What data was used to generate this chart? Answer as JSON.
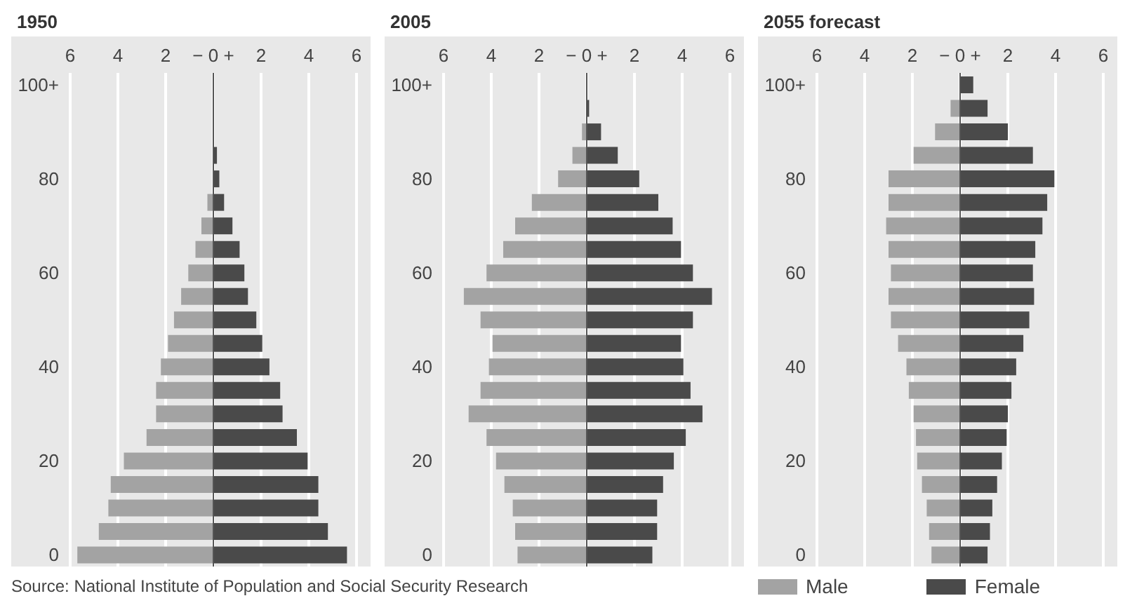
{
  "chart_data": [
    {
      "type": "bar",
      "title": "1950",
      "orientation": "horizontal",
      "stacked": true,
      "grid": "x",
      "legend": false,
      "categories": [
        "100+",
        null,
        null,
        null,
        "80",
        null,
        null,
        null,
        "60",
        null,
        null,
        null,
        "40",
        null,
        null,
        null,
        "20",
        null,
        null,
        null,
        "0"
      ],
      "xlim": [
        -6,
        6
      ],
      "xticks": [
        {
          "value": -6,
          "label": "6"
        },
        {
          "value": -4,
          "label": "4"
        },
        {
          "value": -2,
          "label": "2"
        },
        {
          "value": 0,
          "label": "− 0 +"
        },
        {
          "value": 2,
          "label": "2"
        },
        {
          "value": 4,
          "label": "4"
        },
        {
          "value": 6,
          "label": "6"
        }
      ],
      "ref_lines": [
        {
          "axis": "x",
          "value": 0,
          "color": "#555555"
        }
      ],
      "annotations": [
        "Source: National Institute of Population and Social Security Research"
      ],
      "series": [
        {
          "color": "#a3a3a3",
          "values": [
            0,
            0,
            0,
            null,
            null,
            -0.25,
            -0.5,
            -0.75,
            -1.05,
            -1.35,
            -1.65,
            -1.9,
            -2.2,
            -2.4,
            -2.4,
            -2.8,
            -3.75,
            -4.3,
            -4.4,
            -4.8,
            -5.7
          ]
        },
        {
          "color": "#4a4a4a",
          "values": [
            0,
            0,
            0,
            0.15,
            0.25,
            0.45,
            0.8,
            1.1,
            1.3,
            1.45,
            1.8,
            2.05,
            2.35,
            2.8,
            2.9,
            3.5,
            3.95,
            4.4,
            4.4,
            4.8,
            5.6
          ]
        }
      ]
    },
    {
      "type": "bar",
      "title": "2005",
      "orientation": "horizontal",
      "stacked": true,
      "grid": "x",
      "legend": false,
      "categories": [
        "100+",
        null,
        null,
        null,
        "80",
        null,
        null,
        null,
        "60",
        null,
        null,
        null,
        "40",
        null,
        null,
        null,
        "20",
        null,
        null,
        null,
        "0"
      ],
      "xlim": [
        -6,
        6
      ],
      "xticks": [
        {
          "value": -6,
          "label": "6"
        },
        {
          "value": -4,
          "label": "4"
        },
        {
          "value": -2,
          "label": "2"
        },
        {
          "value": 0,
          "label": "− 0 +"
        },
        {
          "value": 2,
          "label": "2"
        },
        {
          "value": 4,
          "label": "4"
        },
        {
          "value": 6,
          "label": "6"
        }
      ],
      "ref_lines": [
        {
          "axis": "x",
          "value": 0,
          "color": "#555555"
        }
      ],
      "series": [
        {
          "color": "#a3a3a3",
          "values": [
            0,
            null,
            -0.2,
            -0.6,
            -1.2,
            -2.3,
            -3.0,
            -3.5,
            -4.2,
            -5.15,
            -4.45,
            -3.95,
            -4.1,
            -4.45,
            -4.95,
            -4.2,
            -3.8,
            -3.45,
            -3.1,
            -3.0,
            -2.9
          ]
        },
        {
          "color": "#4a4a4a",
          "values": [
            0,
            0.1,
            0.6,
            1.3,
            2.2,
            3.0,
            3.6,
            3.95,
            4.45,
            5.25,
            4.45,
            3.95,
            4.05,
            4.35,
            4.85,
            4.15,
            3.65,
            3.2,
            2.95,
            2.95,
            2.75
          ]
        }
      ]
    },
    {
      "type": "bar",
      "title": "2055 forecast",
      "orientation": "horizontal",
      "stacked": true,
      "grid": "x",
      "legend": "bottom",
      "categories": [
        "100+",
        null,
        null,
        null,
        "80",
        null,
        null,
        null,
        "60",
        null,
        null,
        null,
        "40",
        null,
        null,
        null,
        "20",
        null,
        null,
        null,
        "0"
      ],
      "xlim": [
        -6,
        6
      ],
      "xticks": [
        {
          "value": -6,
          "label": "6"
        },
        {
          "value": -4,
          "label": "4"
        },
        {
          "value": -2,
          "label": "2"
        },
        {
          "value": 0,
          "label": "− 0 +"
        },
        {
          "value": 2,
          "label": "2"
        },
        {
          "value": 4,
          "label": "4"
        },
        {
          "value": 6,
          "label": "6"
        }
      ],
      "ref_lines": [
        {
          "axis": "x",
          "value": 0,
          "color": "#555555"
        }
      ],
      "series": [
        {
          "name": "Male",
          "color": "#a3a3a3",
          "values": [
            0,
            -0.4,
            -1.05,
            -1.95,
            -3.0,
            -3.0,
            -3.1,
            -3.0,
            -2.9,
            -3.0,
            -2.9,
            -2.6,
            -2.25,
            -2.15,
            -1.95,
            -1.85,
            -1.8,
            -1.6,
            -1.4,
            -1.3,
            -1.2
          ]
        },
        {
          "name": "Female",
          "color": "#4a4a4a",
          "values": [
            0.55,
            1.15,
            2.0,
            3.05,
            3.95,
            3.65,
            3.45,
            3.15,
            3.05,
            3.1,
            2.9,
            2.65,
            2.35,
            2.15,
            2.0,
            1.95,
            1.75,
            1.55,
            1.35,
            1.25,
            1.15
          ]
        }
      ]
    }
  ]
}
